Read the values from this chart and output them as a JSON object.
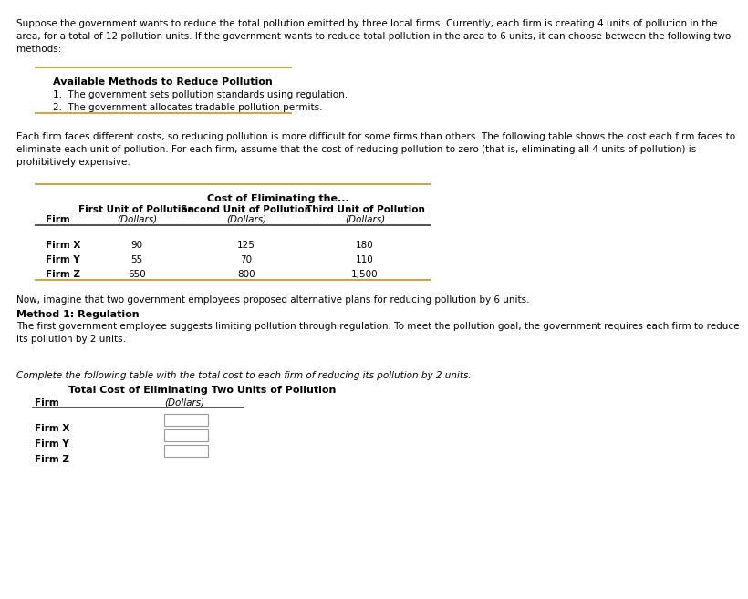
{
  "bg_color": "#ffffff",
  "intro_lines": [
    "Suppose the government wants to reduce the total pollution emitted by three local firms. Currently, each firm is creating 4 units of pollution in the",
    "area, for a total of 12 pollution units. If the government wants to reduce total pollution in the area to 6 units, it can choose between the following two",
    "methods:"
  ],
  "box_title": "Available Methods to Reduce Pollution",
  "box_item1": "1.  The government sets pollution standards using regulation.",
  "box_item2": "2.  The government allocates tradable pollution permits.",
  "golden_color": "#c9a84c",
  "middle_lines": [
    "Each firm faces different costs, so reducing pollution is more difficult for some firms than others. The following table shows the cost each firm faces to",
    "eliminate each unit of pollution. For each firm, assume that the cost of reducing pollution to zero (that is, eliminating all 4 units of pollution) is",
    "prohibitively expensive."
  ],
  "t1_span_header": "Cost of Eliminating the...",
  "t1_col1": "First Unit of Pollution",
  "t1_col2": "Second Unit of Pollution",
  "t1_col3": "Third Unit of Pollution",
  "t1_dollars": "(Dollars)",
  "t1_firm_label": "Firm",
  "t1_data": [
    [
      "Firm X",
      "90",
      "125",
      "180"
    ],
    [
      "Firm Y",
      "55",
      "70",
      "110"
    ],
    [
      "Firm Z",
      "650",
      "800",
      "1,500"
    ]
  ],
  "alt_text": "Now, imagine that two government employees proposed alternative plans for reducing pollution by 6 units.",
  "method1_header": "Method 1: Regulation",
  "method1_lines": [
    "The first government employee suggests limiting pollution through regulation. To meet the pollution goal, the government requires each firm to reduce",
    "its pollution by 2 units."
  ],
  "complete_text": "Complete the following table with the total cost to each firm of reducing its pollution by 2 units.",
  "t2_title": "Total Cost of Eliminating Two Units of Pollution",
  "t2_firm_label": "Firm",
  "t2_dollars": "(Dollars)",
  "t2_firms": [
    "Firm X",
    "Firm Y",
    "Firm Z"
  ]
}
